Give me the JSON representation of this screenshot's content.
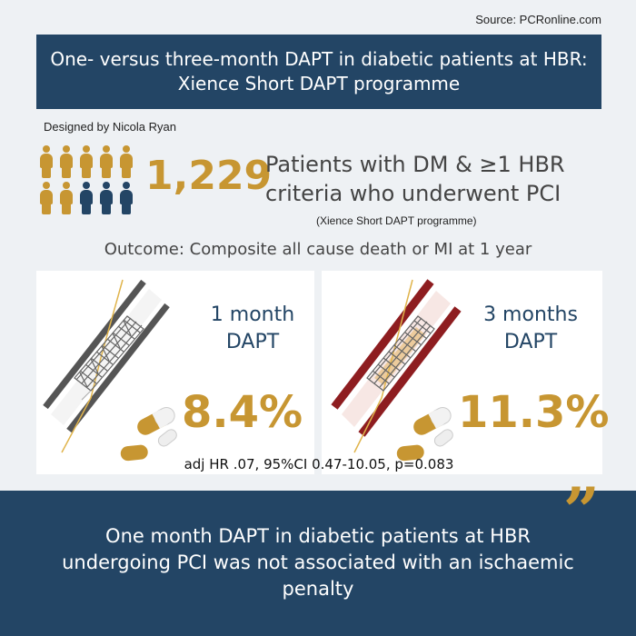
{
  "source": "Source: PCRonline.com",
  "title": "One- versus three-month DAPT in diabetic patients at HBR: Xience Short DAPT programme",
  "designed_by": "Designed by Nicola Ryan",
  "patients": {
    "count": "1,229",
    "description": "Patients with DM & ≥1 HBR criteria who underwent PCI",
    "programme": "(Xience Short DAPT programme)"
  },
  "outcome": "Outcome: Composite all cause death or MI at 1 year",
  "arms": [
    {
      "label_line1": "1 month",
      "label_line2": "DAPT",
      "value": "8.4%"
    },
    {
      "label_line1": "3 months",
      "label_line2": "DAPT",
      "value": "11.3%"
    }
  ],
  "stats": "adj HR .07, 95%CI 0.47-10.05, p=0.083",
  "quote_glyph": "”",
  "conclusion": "One month DAPT in diabetic patients at HBR undergoing PCI was not associated with an ischaemic penalty",
  "colors": {
    "navy": "#234565",
    "gold": "#c79632",
    "background": "#eef1f4"
  }
}
